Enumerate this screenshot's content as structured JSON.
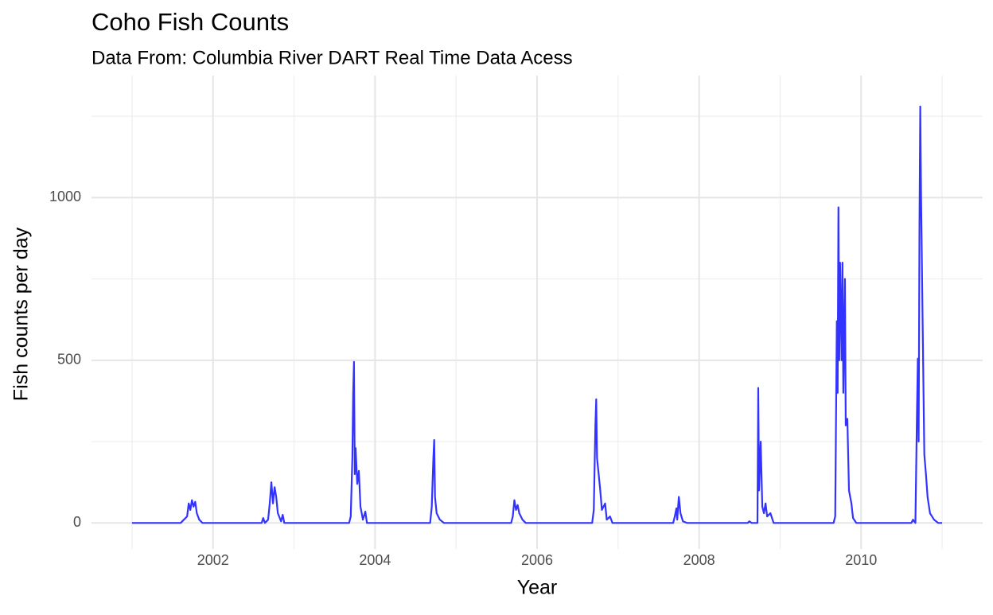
{
  "chart_data": {
    "type": "line",
    "title": "Coho Fish Counts",
    "subtitle": "Data From: Columbia River DART Real Time Data Acess",
    "x_label": "Year",
    "y_label": "Fish counts per day",
    "series": [
      {
        "color": "#3333ff",
        "x": [
          2001.0,
          2001.6,
          2001.68,
          2001.7,
          2001.72,
          2001.74,
          2001.76,
          2001.78,
          2001.8,
          2001.83,
          2001.87,
          2002.6,
          2002.62,
          2002.64,
          2002.68,
          2002.7,
          2002.72,
          2002.74,
          2002.76,
          2002.78,
          2002.8,
          2002.84,
          2002.86,
          2002.88,
          2003.68,
          2003.7,
          2003.72,
          2003.73,
          2003.74,
          2003.75,
          2003.76,
          2003.78,
          2003.8,
          2003.82,
          2003.85,
          2003.88,
          2003.9,
          2004.68,
          2004.7,
          2004.72,
          2004.73,
          2004.74,
          2004.76,
          2004.8,
          2004.85,
          2005.68,
          2005.7,
          2005.72,
          2005.74,
          2005.76,
          2005.78,
          2005.82,
          2005.86,
          2006.68,
          2006.7,
          2006.72,
          2006.73,
          2006.74,
          2006.76,
          2006.78,
          2006.8,
          2006.84,
          2006.86,
          2006.9,
          2006.93,
          2007.68,
          2007.7,
          2007.72,
          2007.73,
          2007.75,
          2007.77,
          2007.8,
          2007.85,
          2008.6,
          2008.62,
          2008.65,
          2008.72,
          2008.73,
          2008.74,
          2008.76,
          2008.78,
          2008.8,
          2008.82,
          2008.84,
          2008.88,
          2008.92,
          2009.66,
          2009.68,
          2009.7,
          2009.71,
          2009.72,
          2009.73,
          2009.74,
          2009.76,
          2009.77,
          2009.78,
          2009.8,
          2009.81,
          2009.83,
          2009.85,
          2009.88,
          2009.9,
          2009.94,
          2010.62,
          2010.64,
          2010.67,
          2010.69,
          2010.7,
          2010.71,
          2010.72,
          2010.73,
          2010.74,
          2010.76,
          2010.78,
          2010.8,
          2010.82,
          2010.85,
          2010.9,
          2010.95,
          2011.0
        ],
        "values": [
          0,
          0,
          20,
          60,
          40,
          70,
          50,
          65,
          30,
          10,
          0,
          0,
          15,
          0,
          10,
          60,
          125,
          60,
          110,
          80,
          30,
          5,
          25,
          0,
          0,
          20,
          200,
          400,
          495,
          150,
          230,
          120,
          160,
          50,
          10,
          35,
          0,
          0,
          50,
          200,
          255,
          80,
          30,
          10,
          0,
          0,
          20,
          70,
          40,
          55,
          30,
          10,
          0,
          0,
          40,
          300,
          380,
          200,
          150,
          100,
          40,
          60,
          10,
          20,
          0,
          0,
          20,
          45,
          10,
          80,
          30,
          5,
          0,
          0,
          5,
          0,
          0,
          415,
          100,
          250,
          50,
          30,
          60,
          20,
          30,
          0,
          0,
          20,
          620,
          400,
          970,
          500,
          800,
          500,
          800,
          400,
          750,
          300,
          320,
          100,
          60,
          15,
          0,
          0,
          10,
          0,
          350,
          505,
          250,
          900,
          1280,
          1000,
          600,
          210,
          150,
          80,
          30,
          10,
          0,
          0
        ]
      }
    ],
    "xlim": [
      2000.5,
      2011.5
    ],
    "xticks": [
      2002,
      2004,
      2006,
      2008,
      2010
    ],
    "xminorticks": [
      2001,
      2003,
      2005,
      2007,
      2009,
      2011
    ],
    "ylim": [
      -80,
      1375
    ],
    "yticks": [
      0,
      500,
      1000
    ],
    "yminorticks": [
      250,
      750,
      1250
    ],
    "grid": true
  }
}
